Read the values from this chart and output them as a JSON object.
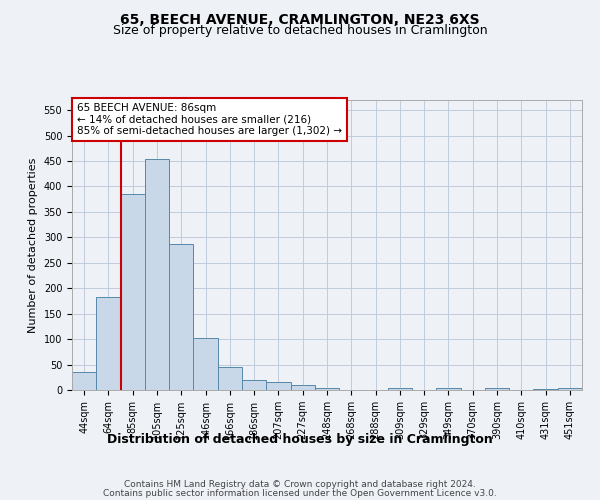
{
  "title1": "65, BEECH AVENUE, CRAMLINGTON, NE23 6XS",
  "title2": "Size of property relative to detached houses in Cramlington",
  "xlabel": "Distribution of detached houses by size in Cramlington",
  "ylabel": "Number of detached properties",
  "categories": [
    "44sqm",
    "64sqm",
    "85sqm",
    "105sqm",
    "125sqm",
    "146sqm",
    "166sqm",
    "186sqm",
    "207sqm",
    "227sqm",
    "248sqm",
    "268sqm",
    "288sqm",
    "309sqm",
    "329sqm",
    "349sqm",
    "370sqm",
    "390sqm",
    "410sqm",
    "431sqm",
    "451sqm"
  ],
  "values": [
    35,
    183,
    385,
    455,
    287,
    103,
    46,
    20,
    15,
    9,
    3,
    0,
    0,
    4,
    0,
    3,
    0,
    3,
    0,
    2,
    3
  ],
  "bar_color": "#c8d8e8",
  "bar_edge_color": "#5588aa",
  "vline_color": "#cc0000",
  "vline_index": 2,
  "annotation_title": "65 BEECH AVENUE: 86sqm",
  "annotation_line1": "← 14% of detached houses are smaller (216)",
  "annotation_line2": "85% of semi-detached houses are larger (1,302) →",
  "annotation_box_color": "#cc0000",
  "ylim": [
    0,
    570
  ],
  "yticks": [
    0,
    50,
    100,
    150,
    200,
    250,
    300,
    350,
    400,
    450,
    500,
    550
  ],
  "footer1": "Contains HM Land Registry data © Crown copyright and database right 2024.",
  "footer2": "Contains public sector information licensed under the Open Government Licence v3.0.",
  "bg_color": "#eef2f7",
  "plot_bg_color": "#eef2f7",
  "grid_color": "#c0ccdd",
  "title1_fontsize": 10,
  "title2_fontsize": 9,
  "ylabel_fontsize": 8,
  "xlabel_fontsize": 9,
  "tick_fontsize": 7,
  "footer_fontsize": 6.5
}
